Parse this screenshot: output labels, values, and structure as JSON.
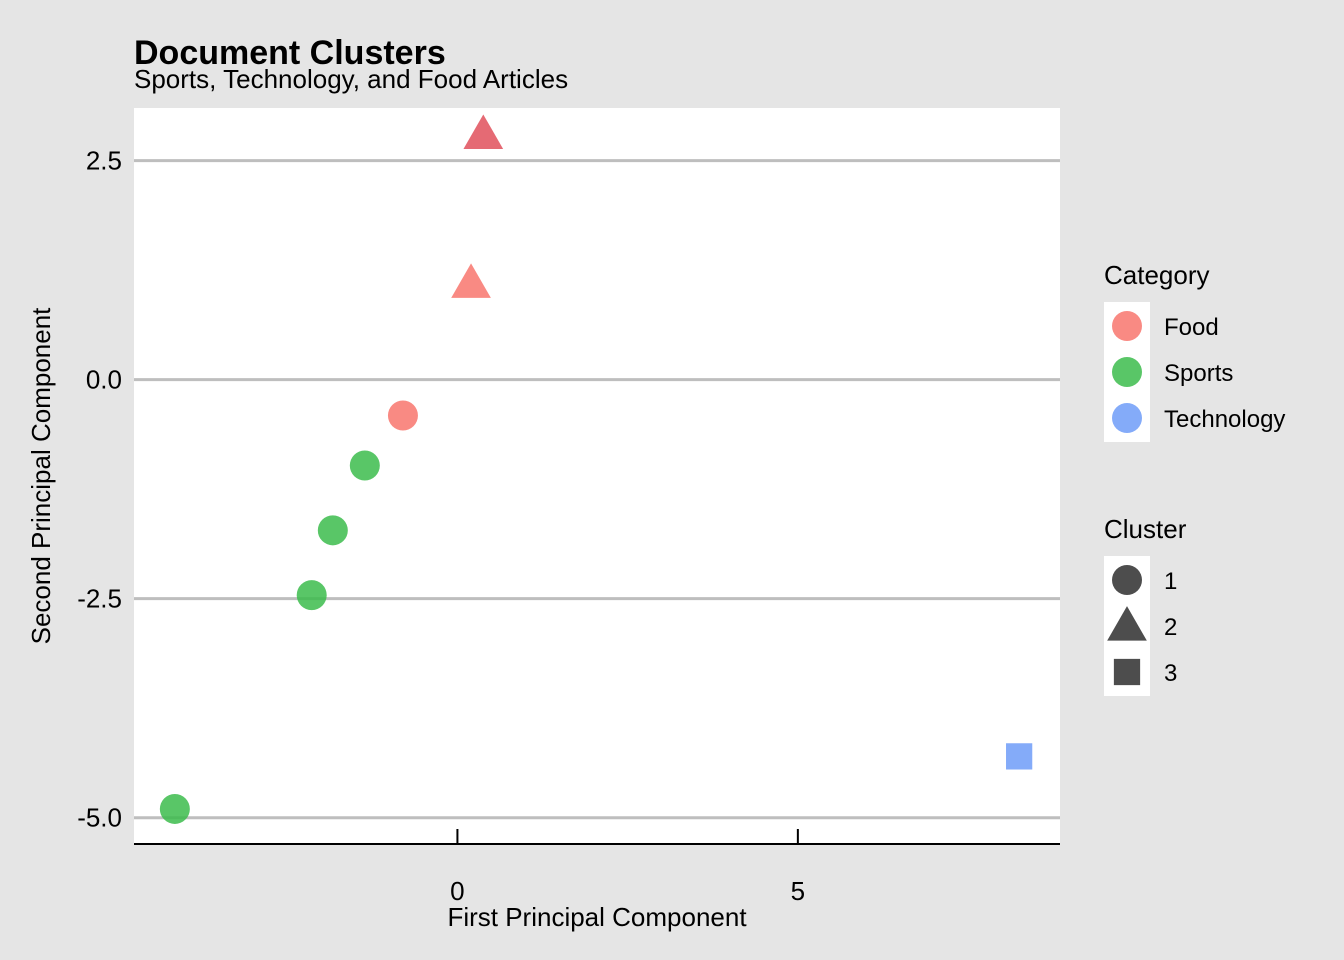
{
  "chart_data": {
    "type": "scatter",
    "title": "Document Clusters",
    "subtitle": "Sports, Technology, and Food Articles",
    "xlabel": "First Principal Component",
    "ylabel": "Second Principal Component",
    "xlim": [
      -4.75,
      8.85
    ],
    "ylim": [
      -5.3,
      3.1
    ],
    "x_ticks": [
      0,
      5
    ],
    "x_tick_labels": [
      "0",
      "5"
    ],
    "y_ticks": [
      2.5,
      0,
      -2.5,
      -5
    ],
    "y_tick_labels": [
      "2.5",
      "0.0",
      "-2.5",
      "-5.0"
    ],
    "grid": "horizontal major lines only",
    "legend_position": "right",
    "colors": {
      "Food": "#f8766d",
      "Sports": "#3cbc4c",
      "Technology": "#6e9cf8",
      "Food_cluster2_dark": "#e0505c"
    },
    "legends": [
      {
        "title": "Category",
        "kind": "color",
        "entries": [
          {
            "label": "Food",
            "color": "#f8766d"
          },
          {
            "label": "Sports",
            "color": "#3cbc4c"
          },
          {
            "label": "Technology",
            "color": "#6e9cf8"
          }
        ]
      },
      {
        "title": "Cluster",
        "kind": "shape",
        "entries": [
          {
            "label": "1",
            "shape": "circle"
          },
          {
            "label": "2",
            "shape": "triangle"
          },
          {
            "label": "3",
            "shape": "square"
          }
        ]
      }
    ],
    "points": [
      {
        "x": 0.38,
        "y": 2.8,
        "category": "Food",
        "cluster": "2",
        "color": "#e0505c"
      },
      {
        "x": 0.2,
        "y": 1.1,
        "category": "Food",
        "cluster": "2",
        "color": "#f8766d"
      },
      {
        "x": -0.8,
        "y": -0.41,
        "category": "Food",
        "cluster": "1",
        "color": "#f8766d"
      },
      {
        "x": -1.36,
        "y": -0.98,
        "category": "Sports",
        "cluster": "1",
        "color": "#3cbc4c"
      },
      {
        "x": -1.83,
        "y": -1.72,
        "category": "Sports",
        "cluster": "1",
        "color": "#3cbc4c"
      },
      {
        "x": -2.14,
        "y": -2.46,
        "category": "Sports",
        "cluster": "1",
        "color": "#3cbc4c"
      },
      {
        "x": -4.15,
        "y": -4.9,
        "category": "Sports",
        "cluster": "1",
        "color": "#3cbc4c"
      },
      {
        "x": 8.25,
        "y": -4.3,
        "category": "Technology",
        "cluster": "3",
        "color": "#6e9cf8"
      }
    ]
  }
}
